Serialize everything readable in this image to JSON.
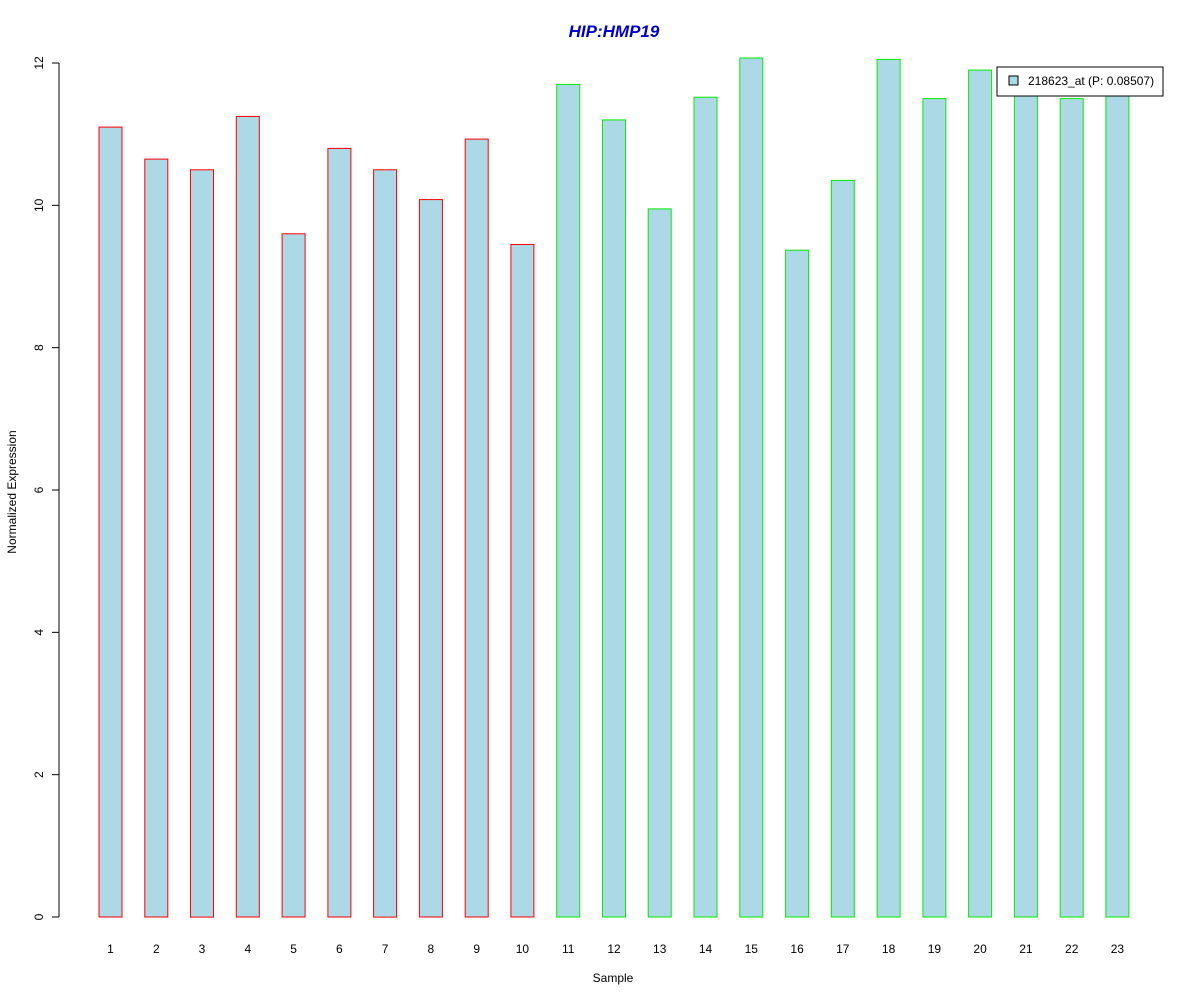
{
  "chart_data": {
    "type": "bar",
    "title": "HIP:HMP19",
    "xlabel": "Sample",
    "ylabel": "Normalized Expression",
    "categories": [
      "1",
      "2",
      "3",
      "4",
      "5",
      "6",
      "7",
      "8",
      "9",
      "10",
      "11",
      "12",
      "13",
      "14",
      "15",
      "16",
      "17",
      "18",
      "19",
      "20",
      "21",
      "22",
      "23"
    ],
    "series": [
      {
        "name": "218623_at (P: 0.08507)",
        "values": [
          11.1,
          10.65,
          10.5,
          11.25,
          9.6,
          10.8,
          10.5,
          10.08,
          10.93,
          9.45,
          11.7,
          11.2,
          9.95,
          11.52,
          12.07,
          9.37,
          10.35,
          12.05,
          11.5,
          11.9,
          11.6,
          11.5,
          11.6
        ]
      }
    ],
    "group_border_colors": [
      "#ff0000",
      "#ff0000",
      "#ff0000",
      "#ff0000",
      "#ff0000",
      "#ff0000",
      "#ff0000",
      "#ff0000",
      "#ff0000",
      "#ff0000",
      "#00ee00",
      "#00ee00",
      "#00ee00",
      "#00ee00",
      "#00ee00",
      "#00ee00",
      "#00ee00",
      "#00ee00",
      "#00ee00",
      "#00ee00",
      "#00ee00",
      "#00ee00",
      "#00ee00"
    ],
    "bar_fill": "#add8e6",
    "title_color": "#0000cc",
    "yticks": [
      "0",
      "2",
      "4",
      "6",
      "8",
      "10",
      "12"
    ],
    "ylim": [
      0,
      12
    ],
    "grid": false,
    "legend_position": "top-right"
  }
}
